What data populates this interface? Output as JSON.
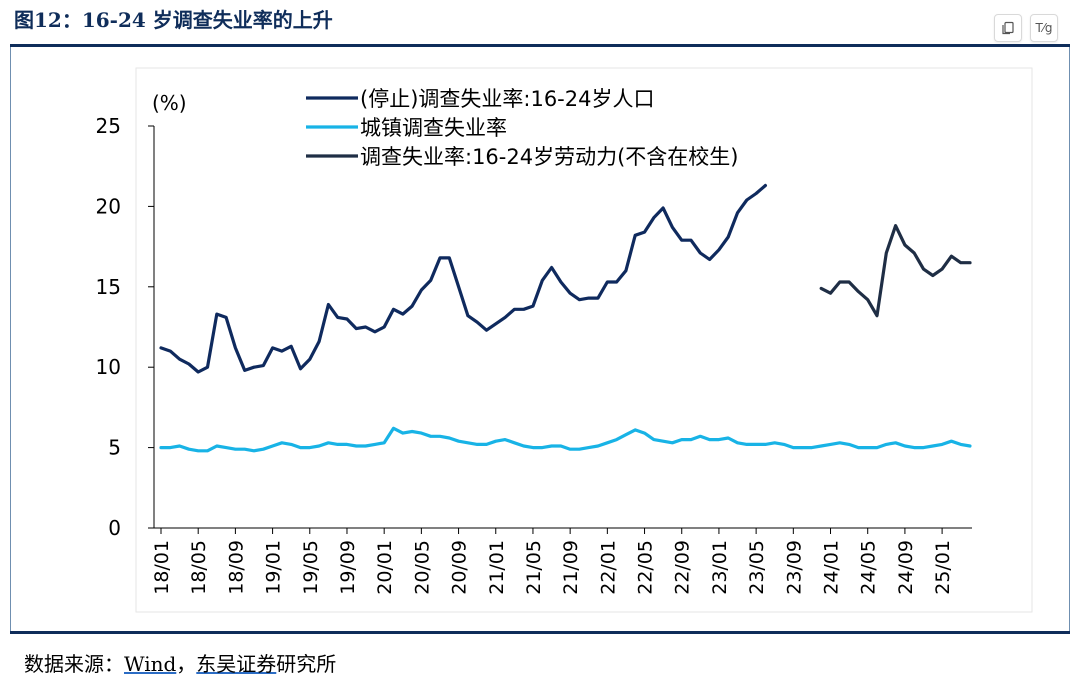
{
  "header": {
    "title": "图12：16-24 岁调查失业率的上升",
    "copy_icon": "copy-icon",
    "translate_icon": "translate-icon",
    "translate_label": "T⁄g"
  },
  "source": {
    "prefix": "数据来源：",
    "link1": "Wind",
    "sep": "，",
    "link2": "东吴证券",
    "suffix": "研究所"
  },
  "chart_data": {
    "type": "line",
    "ylabel": "(%)",
    "ylim": [
      0,
      25
    ],
    "yticks": [
      0,
      5,
      10,
      15,
      20,
      25
    ],
    "x_start": "2018-01",
    "x_end": "2025-04",
    "x_tick_labels": [
      "18/01",
      "18/05",
      "18/09",
      "19/01",
      "19/05",
      "19/09",
      "20/01",
      "20/05",
      "20/09",
      "21/01",
      "21/05",
      "21/09",
      "22/01",
      "22/05",
      "22/09",
      "23/01",
      "23/05",
      "23/09",
      "24/01",
      "24/05",
      "24/09",
      "25/01"
    ],
    "legend_position": "top-center",
    "grid": false,
    "series": [
      {
        "name": "(停止)调查失业率:16-24岁人口",
        "color": "#0f2a5e",
        "dates": [
          "2018-01",
          "2018-02",
          "2018-03",
          "2018-04",
          "2018-05",
          "2018-06",
          "2018-07",
          "2018-08",
          "2018-09",
          "2018-10",
          "2018-11",
          "2018-12",
          "2019-01",
          "2019-02",
          "2019-03",
          "2019-04",
          "2019-05",
          "2019-06",
          "2019-07",
          "2019-08",
          "2019-09",
          "2019-10",
          "2019-11",
          "2019-12",
          "2020-01",
          "2020-02",
          "2020-03",
          "2020-04",
          "2020-05",
          "2020-06",
          "2020-07",
          "2020-08",
          "2020-09",
          "2020-10",
          "2020-11",
          "2020-12",
          "2021-01",
          "2021-02",
          "2021-03",
          "2021-04",
          "2021-05",
          "2021-06",
          "2021-07",
          "2021-08",
          "2021-09",
          "2021-10",
          "2021-11",
          "2021-12",
          "2022-01",
          "2022-02",
          "2022-03",
          "2022-04",
          "2022-05",
          "2022-06",
          "2022-07",
          "2022-08",
          "2022-09",
          "2022-10",
          "2022-11",
          "2022-12",
          "2023-01",
          "2023-02",
          "2023-03",
          "2023-04",
          "2023-05",
          "2023-06"
        ],
        "values": [
          11.2,
          11.0,
          10.5,
          10.2,
          9.7,
          10.0,
          13.3,
          13.1,
          11.2,
          9.8,
          10.0,
          10.1,
          11.2,
          11.0,
          11.3,
          9.9,
          10.5,
          11.6,
          13.9,
          13.1,
          13.0,
          12.4,
          12.5,
          12.2,
          12.5,
          13.6,
          13.3,
          13.8,
          14.8,
          15.4,
          16.8,
          16.8,
          15.0,
          13.2,
          12.8,
          12.3,
          12.7,
          13.1,
          13.6,
          13.6,
          13.8,
          15.4,
          16.2,
          15.3,
          14.6,
          14.2,
          14.3,
          14.3,
          15.3,
          15.3,
          16.0,
          18.2,
          18.4,
          19.3,
          19.9,
          18.7,
          17.9,
          17.9,
          17.1,
          16.7,
          17.3,
          18.1,
          19.6,
          20.4,
          20.8,
          21.3
        ]
      },
      {
        "name": "城镇调查失业率",
        "color": "#18b3e6",
        "dates": [
          "2018-01",
          "2018-02",
          "2018-03",
          "2018-04",
          "2018-05",
          "2018-06",
          "2018-07",
          "2018-08",
          "2018-09",
          "2018-10",
          "2018-11",
          "2018-12",
          "2019-01",
          "2019-02",
          "2019-03",
          "2019-04",
          "2019-05",
          "2019-06",
          "2019-07",
          "2019-08",
          "2019-09",
          "2019-10",
          "2019-11",
          "2019-12",
          "2020-01",
          "2020-02",
          "2020-03",
          "2020-04",
          "2020-05",
          "2020-06",
          "2020-07",
          "2020-08",
          "2020-09",
          "2020-10",
          "2020-11",
          "2020-12",
          "2021-01",
          "2021-02",
          "2021-03",
          "2021-04",
          "2021-05",
          "2021-06",
          "2021-07",
          "2021-08",
          "2021-09",
          "2021-10",
          "2021-11",
          "2021-12",
          "2022-01",
          "2022-02",
          "2022-03",
          "2022-04",
          "2022-05",
          "2022-06",
          "2022-07",
          "2022-08",
          "2022-09",
          "2022-10",
          "2022-11",
          "2022-12",
          "2023-01",
          "2023-02",
          "2023-03",
          "2023-04",
          "2023-05",
          "2023-06",
          "2023-07",
          "2023-08",
          "2023-09",
          "2023-10",
          "2023-11",
          "2023-12",
          "2024-01",
          "2024-02",
          "2024-03",
          "2024-04",
          "2024-05",
          "2024-06",
          "2024-07",
          "2024-08",
          "2024-09",
          "2024-10",
          "2024-11",
          "2024-12",
          "2025-01",
          "2025-02",
          "2025-03",
          "2025-04"
        ],
        "values": [
          5.0,
          5.0,
          5.1,
          4.9,
          4.8,
          4.8,
          5.1,
          5.0,
          4.9,
          4.9,
          4.8,
          4.9,
          5.1,
          5.3,
          5.2,
          5.0,
          5.0,
          5.1,
          5.3,
          5.2,
          5.2,
          5.1,
          5.1,
          5.2,
          5.3,
          6.2,
          5.9,
          6.0,
          5.9,
          5.7,
          5.7,
          5.6,
          5.4,
          5.3,
          5.2,
          5.2,
          5.4,
          5.5,
          5.3,
          5.1,
          5.0,
          5.0,
          5.1,
          5.1,
          4.9,
          4.9,
          5.0,
          5.1,
          5.3,
          5.5,
          5.8,
          6.1,
          5.9,
          5.5,
          5.4,
          5.3,
          5.5,
          5.5,
          5.7,
          5.5,
          5.5,
          5.6,
          5.3,
          5.2,
          5.2,
          5.2,
          5.3,
          5.2,
          5.0,
          5.0,
          5.0,
          5.1,
          5.2,
          5.3,
          5.2,
          5.0,
          5.0,
          5.0,
          5.2,
          5.3,
          5.1,
          5.0,
          5.0,
          5.1,
          5.2,
          5.4,
          5.2,
          5.1
        ]
      },
      {
        "name": "调查失业率:16-24岁劳动力(不含在校生)",
        "color": "#1f2e45",
        "dates": [
          "2023-12",
          "2024-01",
          "2024-02",
          "2024-03",
          "2024-04",
          "2024-05",
          "2024-06",
          "2024-07",
          "2024-08",
          "2024-09",
          "2024-10",
          "2024-11",
          "2024-12",
          "2025-01",
          "2025-02",
          "2025-03",
          "2025-04"
        ],
        "values": [
          14.9,
          14.6,
          15.3,
          15.3,
          14.7,
          14.2,
          13.2,
          17.1,
          18.8,
          17.6,
          17.1,
          16.1,
          15.7,
          16.1,
          16.9,
          16.5,
          16.5
        ]
      }
    ]
  }
}
